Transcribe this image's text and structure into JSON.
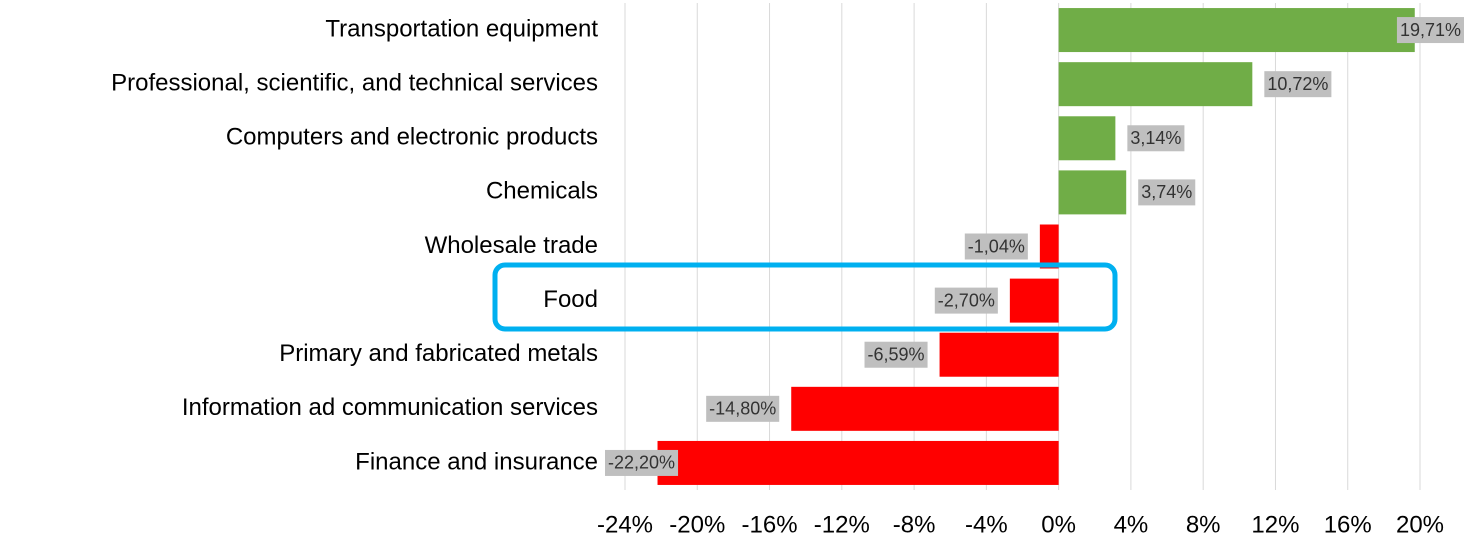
{
  "chart_data": {
    "type": "barh",
    "categories": [
      "Transportation equipment",
      "Professional, scientific, and technical services",
      "Computers and electronic products",
      "Chemicals",
      "Wholesale trade",
      "Food",
      "Primary and fabricated metals",
      "Information ad communication services",
      "Finance and insurance"
    ],
    "values": [
      19.71,
      10.72,
      3.14,
      3.74,
      -1.04,
      -2.7,
      -6.59,
      -14.8,
      -22.2
    ],
    "value_labels": [
      "19,71%",
      "10,72%",
      "3,14%",
      "3,74%",
      "-1,04%",
      "-2,70%",
      "-6,59%",
      "-14,80%",
      "-22,20%"
    ],
    "colors": [
      "#70ad47",
      "#70ad47",
      "#70ad47",
      "#70ad47",
      "#ff0000",
      "#ff0000",
      "#ff0000",
      "#ff0000",
      "#ff0000"
    ],
    "xlim": [
      -24,
      20
    ],
    "xticks": [
      {
        "value": -24,
        "label": "-24%"
      },
      {
        "value": -20,
        "label": "-20%"
      },
      {
        "value": -16,
        "label": "-16%"
      },
      {
        "value": -12,
        "label": "-12%"
      },
      {
        "value": -8,
        "label": "-8%"
      },
      {
        "value": -4,
        "label": "-4%"
      },
      {
        "value": 0,
        "label": "0%"
      },
      {
        "value": 4,
        "label": "4%"
      },
      {
        "value": 8,
        "label": "8%"
      },
      {
        "value": 12,
        "label": "12%"
      },
      {
        "value": 16,
        "label": "16%"
      },
      {
        "value": 20,
        "label": "20%"
      }
    ],
    "grid": true
  }
}
